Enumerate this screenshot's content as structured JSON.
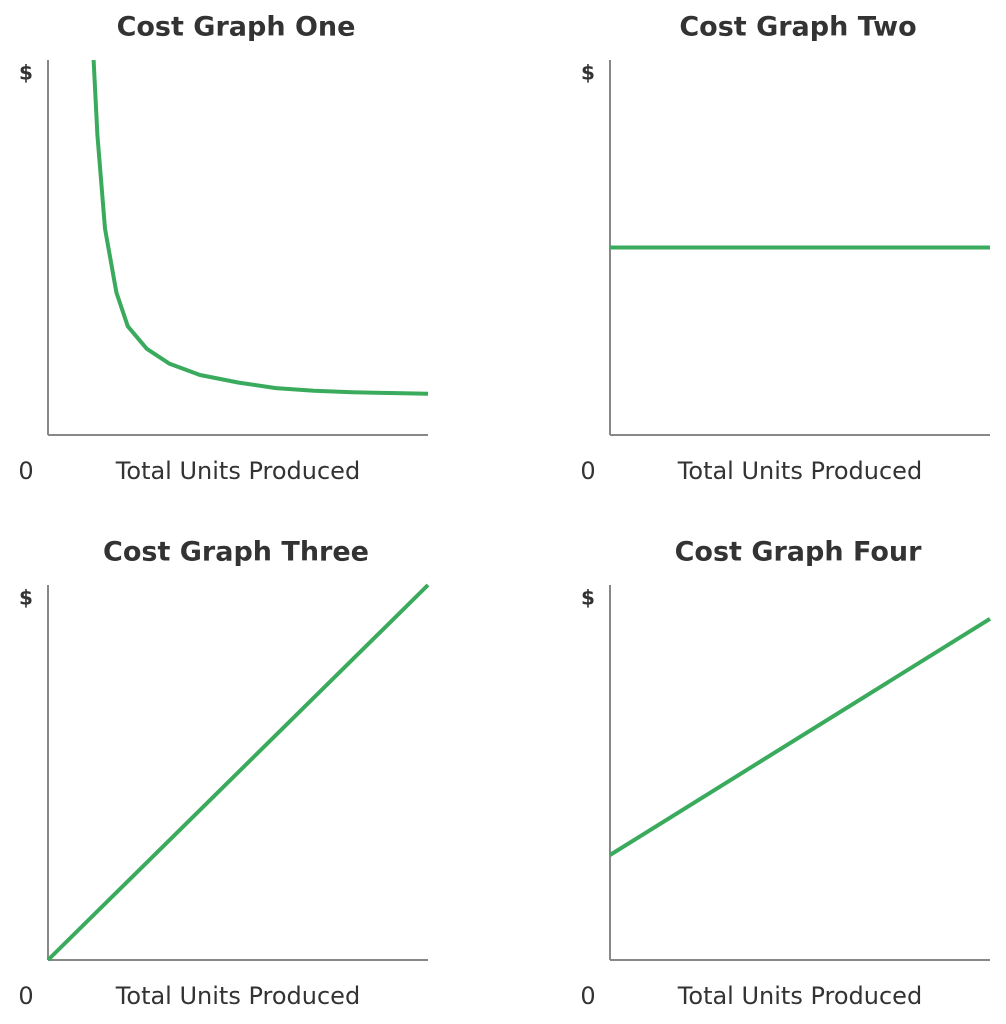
{
  "chart_data": [
    {
      "type": "line",
      "title": "Cost Graph One",
      "x_label": "Total Units Produced",
      "y_label": "$",
      "x": [
        1.2,
        1.3,
        1.5,
        1.8,
        2.1,
        2.6,
        3.2,
        4,
        5,
        6,
        7,
        8,
        9,
        10
      ],
      "values": [
        10,
        8,
        5.5,
        3.8,
        2.9,
        2.3,
        1.9,
        1.6,
        1.4,
        1.25,
        1.18,
        1.14,
        1.12,
        1.1
      ],
      "color": "#3aaa5c",
      "xlim": [
        0,
        10
      ],
      "ylim": [
        0,
        10
      ],
      "xticks": [
        0
      ]
    },
    {
      "type": "line",
      "title": "Cost Graph Two",
      "x_label": "Total Units Produced",
      "y_label": "$",
      "x": [
        0,
        10
      ],
      "values": [
        5,
        5
      ],
      "color": "#3aaa5c",
      "xlim": [
        0,
        10
      ],
      "ylim": [
        0,
        10
      ],
      "xticks": [
        0
      ]
    },
    {
      "type": "line",
      "title": "Cost Graph Three",
      "x_label": "Total Units Produced",
      "y_label": "$",
      "x": [
        0,
        10
      ],
      "values": [
        0,
        10
      ],
      "color": "#3aaa5c",
      "xlim": [
        0,
        10
      ],
      "ylim": [
        0,
        10
      ],
      "xticks": [
        0
      ]
    },
    {
      "type": "line",
      "title": "Cost Graph Four",
      "x_label": "Total Units Produced",
      "y_label": "$",
      "x": [
        0,
        10
      ],
      "values": [
        2.8,
        9.1
      ],
      "color": "#3aaa5c",
      "xlim": [
        0,
        10
      ],
      "ylim": [
        0,
        10
      ],
      "xticks": [
        0
      ]
    }
  ]
}
